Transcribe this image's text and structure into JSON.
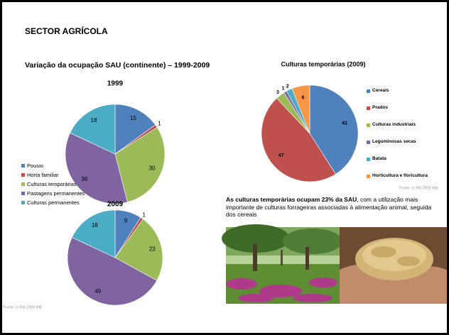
{
  "title": "SECTOR AGRÍCOLA",
  "subtitle": "Variação da ocupação SAU (continente) – 1999-2009",
  "chart_data": [
    {
      "type": "pie",
      "title": "1999",
      "categories": [
        "Pousio",
        "Horta familiar",
        "Culturas temporárias",
        "Pastagens permanentes",
        "Culturas permanentes"
      ],
      "values": [
        15,
        1,
        30,
        36,
        18
      ],
      "colors": [
        "#4f81bd",
        "#c0504d",
        "#9bbb59",
        "#8064a2",
        "#4bacc6"
      ],
      "legend": "left"
    },
    {
      "type": "pie",
      "title": "2009",
      "values": [
        9,
        1,
        23,
        49,
        18
      ],
      "colors": [
        "#4f81bd",
        "#c0504d",
        "#9bbb59",
        "#8064a2",
        "#4bacc6"
      ],
      "source": "Fonte: in RA 2009 INE"
    },
    {
      "type": "pie",
      "title": "Culturas temporárias (2009)",
      "categories": [
        "Cereais",
        "Prados",
        "Culturas industriais",
        "Leguminosas secas",
        "Batata",
        "Horticultura e floricultura"
      ],
      "values": [
        41,
        47,
        3,
        1,
        2,
        6
      ],
      "colors": [
        "#4f81bd",
        "#c0504d",
        "#9bbb59",
        "#8064a2",
        "#4bacc6",
        "#f79646"
      ],
      "legend": "right",
      "source": "Fonte: in RA 2009 INE"
    }
  ],
  "text": {
    "bold": "As culturas temporárias ocupam 23% da SAU",
    "rest": ", com a utilização mais importante de culturas forrageiras associadas à alimentação animal, seguida dos cereais"
  }
}
